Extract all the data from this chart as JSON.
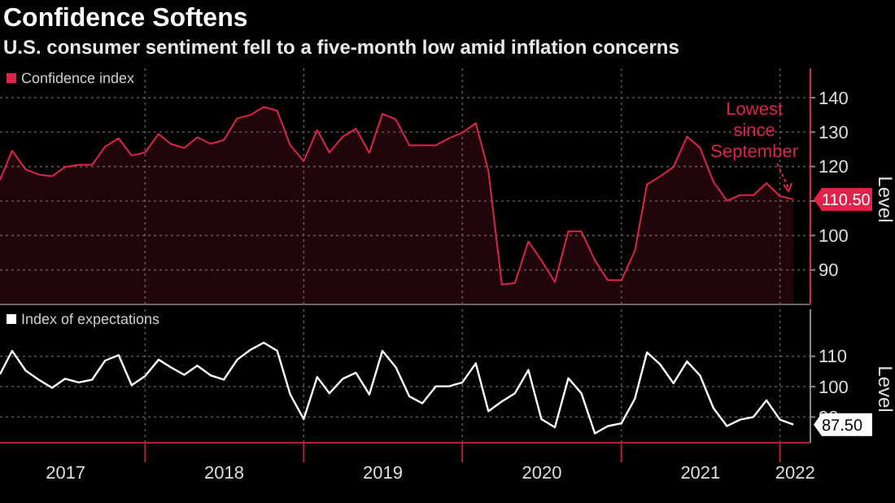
{
  "chart_data": [
    {
      "type": "area",
      "title": "Confidence Softens",
      "subtitle": "U.S. consumer sentiment fell to a five-month low amid inflation concerns",
      "ylabel": "Level",
      "legend": "top left",
      "grid": true,
      "tick_labels": "y",
      "x": [
        "2017-02",
        "2017-03",
        "2017-04",
        "2017-05",
        "2017-06",
        "2017-07",
        "2017-08",
        "2017-09",
        "2017-10",
        "2017-11",
        "2017-12",
        "2018-01",
        "2018-02",
        "2018-03",
        "2018-04",
        "2018-05",
        "2018-06",
        "2018-07",
        "2018-08",
        "2018-09",
        "2018-10",
        "2018-11",
        "2018-12",
        "2019-01",
        "2019-02",
        "2019-03",
        "2019-04",
        "2019-05",
        "2019-06",
        "2019-07",
        "2019-08",
        "2019-09",
        "2019-10",
        "2019-11",
        "2019-12",
        "2020-01",
        "2020-02",
        "2020-03",
        "2020-04",
        "2020-05",
        "2020-06",
        "2020-07",
        "2020-08",
        "2020-09",
        "2020-10",
        "2020-11",
        "2020-12",
        "2021-01",
        "2021-02",
        "2021-03",
        "2021-04",
        "2021-05",
        "2021-06",
        "2021-07",
        "2021-08",
        "2021-09",
        "2021-10",
        "2021-11",
        "2021-12",
        "2022-01",
        "2022-02"
      ],
      "xlim": [
        "2017-02-01",
        "2022-03-12"
      ],
      "ylim": [
        80,
        148.5
      ],
      "yticks": [
        90,
        100,
        {
          "value": 110,
          "label": null
        },
        120,
        130,
        140
      ],
      "xticks": [
        {
          "value": "2018-01-01",
          "label": null
        },
        {
          "value": "2019-01-01",
          "label": null
        },
        {
          "value": "2020-01-01",
          "label": null
        },
        {
          "value": "2021-01-01",
          "label": null
        },
        {
          "value": "2022-01-01",
          "label": null
        }
      ],
      "series": [
        {
          "name": "Confidence index",
          "color": "#e0234a",
          "values": [
            116.1,
            124.6,
            119.2,
            117.7,
            117.2,
            119.9,
            120.5,
            120.5,
            125.8,
            128.2,
            123.2,
            124.1,
            129.5,
            126.6,
            125.4,
            128.5,
            126.6,
            127.7,
            134.0,
            135.0,
            137.3,
            136.2,
            126.2,
            121.6,
            130.6,
            124.1,
            128.7,
            131.0,
            124.0,
            135.3,
            133.7,
            126.2,
            126.2,
            126.2,
            128.2,
            129.8,
            132.6,
            118.8,
            85.8,
            86.2,
            98.3,
            92.8,
            86.5,
            101.2,
            101.2,
            92.8,
            87.0,
            87.0,
            95.5,
            114.8,
            117.2,
            119.9,
            128.7,
            125.5,
            115.6,
            110.1,
            111.7,
            111.7,
            115.2,
            111.4,
            110.5
          ],
          "value_labels": [
            null,
            null,
            null,
            null,
            null,
            null,
            null,
            null,
            null,
            null,
            null,
            null,
            null,
            null,
            null,
            null,
            null,
            null,
            null,
            null,
            null,
            null,
            null,
            null,
            null,
            null,
            null,
            null,
            null,
            null,
            null,
            null,
            null,
            null,
            null,
            null,
            null,
            null,
            null,
            null,
            null,
            null,
            null,
            null,
            null,
            null,
            null,
            null,
            null,
            null,
            null,
            null,
            null,
            null,
            null,
            null,
            null,
            null,
            null,
            null,
            "110.50"
          ]
        }
      ],
      "annotations": [
        {
          "text": "Lowest since September",
          "x": "2022-02",
          "y": 110.5
        }
      ]
    },
    {
      "type": "line",
      "ylabel": "Level",
      "legend": "top left",
      "grid": true,
      "x": [
        "2017-02",
        "2017-03",
        "2017-04",
        "2017-05",
        "2017-06",
        "2017-07",
        "2017-08",
        "2017-09",
        "2017-10",
        "2017-11",
        "2017-12",
        "2018-01",
        "2018-02",
        "2018-03",
        "2018-04",
        "2018-05",
        "2018-06",
        "2018-07",
        "2018-08",
        "2018-09",
        "2018-10",
        "2018-11",
        "2018-12",
        "2019-01",
        "2019-02",
        "2019-03",
        "2019-04",
        "2019-05",
        "2019-06",
        "2019-07",
        "2019-08",
        "2019-09",
        "2019-10",
        "2019-11",
        "2019-12",
        "2020-01",
        "2020-02",
        "2020-03",
        "2020-04",
        "2020-05",
        "2020-06",
        "2020-07",
        "2020-08",
        "2020-09",
        "2020-10",
        "2020-11",
        "2020-12",
        "2021-01",
        "2021-02",
        "2021-03",
        "2021-04",
        "2021-05",
        "2021-06",
        "2021-07",
        "2021-08",
        "2021-09",
        "2021-10",
        "2021-11",
        "2021-12",
        "2022-01",
        "2022-02"
      ],
      "xlim": [
        "2017-02-01",
        "2022-03-12"
      ],
      "ylim": [
        81.5,
        125.5
      ],
      "yticks": [
        90,
        100,
        110
      ],
      "xticks": [
        {
          "value": "2017-07-02",
          "label": "2017"
        },
        {
          "value": "2018-01-01",
          "label": null
        },
        {
          "value": "2018-07-02",
          "label": "2018"
        },
        {
          "value": "2019-01-01",
          "label": null
        },
        {
          "value": "2019-07-02",
          "label": "2019"
        },
        {
          "value": "2020-01-01",
          "label": null
        },
        {
          "value": "2020-07-02",
          "label": "2020"
        },
        {
          "value": "2021-01-01",
          "label": null
        },
        {
          "value": "2021-07-02",
          "label": "2021"
        },
        {
          "value": "2022-01-01",
          "label": null
        },
        {
          "value": "2022-02-05",
          "label": "2022"
        }
      ],
      "series": [
        {
          "name": "Index of expectations",
          "color": "#ffffff",
          "values": [
            104.1,
            111.8,
            105.3,
            102.3,
            99.6,
            102.6,
            101.4,
            102.3,
            108.6,
            110.4,
            100.5,
            103.5,
            108.9,
            106.4,
            103.9,
            106.9,
            103.7,
            102.3,
            108.9,
            112.2,
            114.5,
            111.8,
            97.4,
            89.3,
            103.2,
            97.8,
            102.6,
            104.6,
            97.4,
            111.8,
            106.4,
            96.8,
            94.5,
            100.1,
            100.1,
            101.4,
            107.7,
            91.9,
            95.1,
            97.8,
            105.5,
            89.3,
            86.6,
            102.8,
            97.8,
            84.6,
            87.0,
            87.9,
            96.0,
            111.3,
            107.2,
            101.1,
            108.3,
            103.7,
            92.9,
            87.0,
            89.1,
            90.0,
            95.5,
            89.1,
            87.5
          ],
          "value_labels": [
            null,
            null,
            null,
            null,
            null,
            null,
            null,
            null,
            null,
            null,
            null,
            null,
            null,
            null,
            null,
            null,
            null,
            null,
            null,
            null,
            null,
            null,
            null,
            null,
            null,
            null,
            null,
            null,
            null,
            null,
            null,
            null,
            null,
            null,
            null,
            null,
            null,
            null,
            null,
            null,
            null,
            null,
            null,
            null,
            null,
            null,
            null,
            null,
            null,
            null,
            null,
            null,
            null,
            null,
            null,
            null,
            null,
            null,
            null,
            null,
            "87.50"
          ]
        }
      ]
    }
  ]
}
